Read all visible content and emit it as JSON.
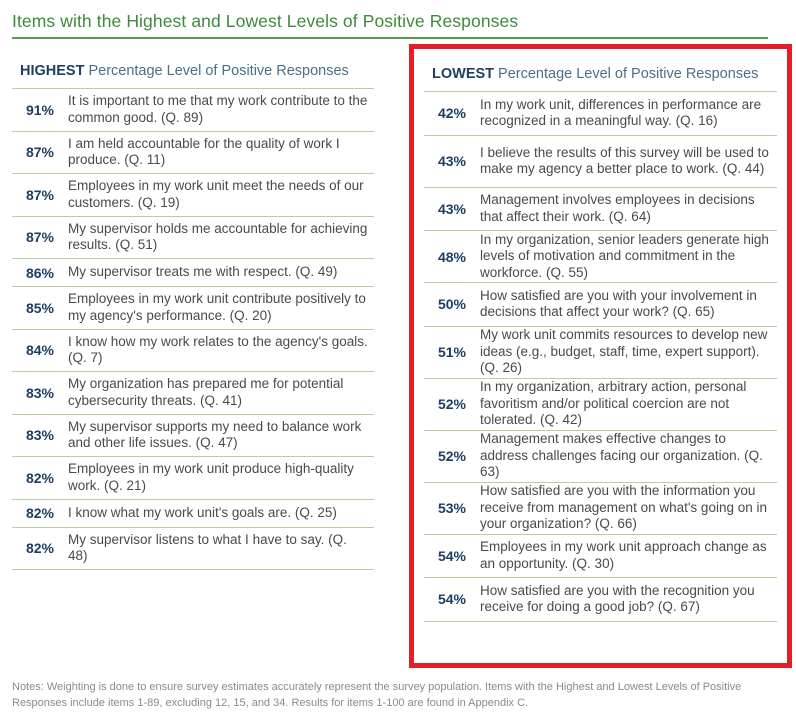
{
  "title": "Items with the Highest and Lowest Levels of Positive Responses",
  "highest": {
    "heading_key": "HIGHEST",
    "heading_rest": "Percentage Level of Positive Responses",
    "items": [
      {
        "pct": "91%",
        "text": "It is important to me that my work contribute to the common good. (Q. 89)",
        "lines": 2
      },
      {
        "pct": "87%",
        "text": "I am held accountable for the quality of work I produce. (Q. 11)",
        "lines": 2
      },
      {
        "pct": "87%",
        "text": "Employees in my work unit meet the needs of our customers. (Q. 19)",
        "lines": 2
      },
      {
        "pct": "87%",
        "text": "My supervisor holds me accountable for achieving results. (Q. 51)",
        "lines": 2
      },
      {
        "pct": "86%",
        "text": "My supervisor treats me with respect. (Q. 49)",
        "lines": 1
      },
      {
        "pct": "85%",
        "text": "Employees in my work unit contribute positively to my agency's performance. (Q. 20)",
        "lines": 2
      },
      {
        "pct": "84%",
        "text": "I know how my work relates to the agency's goals. (Q. 7)",
        "lines": 2
      },
      {
        "pct": "83%",
        "text": "My organization has prepared me for potential cybersecurity threats. (Q. 41)",
        "lines": 2
      },
      {
        "pct": "83%",
        "text": "My supervisor supports my need to balance work and other life issues. (Q. 47)",
        "lines": 2
      },
      {
        "pct": "82%",
        "text": "Employees in my work unit produce high-quality work. (Q. 21)",
        "lines": 2
      },
      {
        "pct": "82%",
        "text": "I know what my work unit's goals are. (Q. 25)",
        "lines": 1
      },
      {
        "pct": "82%",
        "text": "My supervisor listens to what I have to say. (Q. 48)",
        "lines": 2
      }
    ]
  },
  "lowest": {
    "heading_key": "LOWEST",
    "heading_rest": "Percentage Level of Positive Responses",
    "items": [
      {
        "pct": "42%",
        "text": "In my work unit, differences in performance are recognized in a meaningful way. (Q. 16)",
        "lines": 2
      },
      {
        "pct": "43%",
        "text": "I believe the results of this survey will be used to make my agency a better place to work. (Q. 44)",
        "lines": 3
      },
      {
        "pct": "43%",
        "text": "Management involves employees in decisions that affect their work. (Q. 64)",
        "lines": 2
      },
      {
        "pct": "48%",
        "text": "In my organization, senior leaders generate high levels of motivation and commitment in the workforce. (Q. 55)",
        "lines": 3
      },
      {
        "pct": "50%",
        "text": "How satisfied are you with your involvement in decisions that affect your work? (Q. 65)",
        "lines": 2
      },
      {
        "pct": "51%",
        "text": "My work unit commits resources to develop new ideas (e.g., budget, staff, time, expert support). (Q. 26)",
        "lines": 3
      },
      {
        "pct": "52%",
        "text": "In my organization, arbitrary action, personal favoritism and/or political coercion are not tolerated. (Q. 42)",
        "lines": 3
      },
      {
        "pct": "52%",
        "text": "Management makes effective changes to address challenges facing our organization. (Q. 63)",
        "lines": 3
      },
      {
        "pct": "53%",
        "text": "How satisfied are you with the information you receive from management on what's going on in your organization? (Q. 66)",
        "lines": 3
      },
      {
        "pct": "54%",
        "text": "Employees in my work unit approach change as an opportunity. (Q. 30)",
        "lines": 2
      },
      {
        "pct": "54%",
        "text": "How satisfied are you with the recognition you receive for doing a good job? (Q. 67)",
        "lines": 2
      }
    ]
  },
  "notes": "Notes: Weighting is done to ensure survey estimates accurately represent the survey population. Items with the Highest and Lowest Levels of Positive Responses include items 1-89, excluding 12, 15, and 34. Results for items 1-100 are found in Appendix C.",
  "colors": {
    "title_green": "#3f8a3a",
    "rule_green": "#b9cf9e",
    "navy": "#1f3e63",
    "highlight_red": "#e31e24"
  }
}
